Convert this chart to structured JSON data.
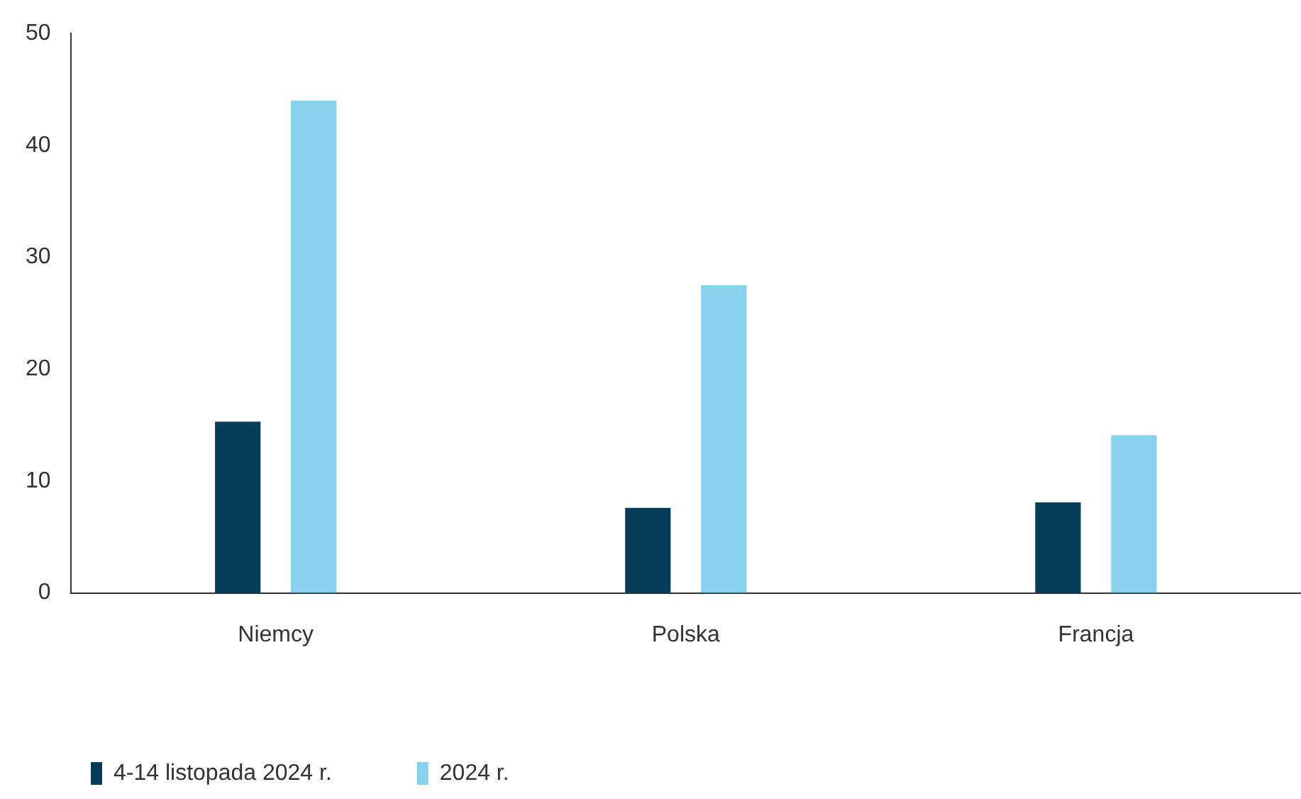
{
  "chart_data": {
    "type": "bar",
    "categories": [
      "Niemcy",
      "Polska",
      "Francja"
    ],
    "series": [
      {
        "name": "4-14 listopada 2024 r.",
        "color": "#083d5a",
        "values": [
          15.3,
          7.6,
          8.1
        ]
      },
      {
        "name": "2024 r.",
        "color": "#87d1ed",
        "values": [
          44.0,
          27.5,
          14.1
        ]
      }
    ],
    "ylim": [
      0,
      50
    ],
    "yticks": [
      0,
      10,
      20,
      30,
      40,
      50
    ],
    "grid": false,
    "legend": "bottom left"
  }
}
